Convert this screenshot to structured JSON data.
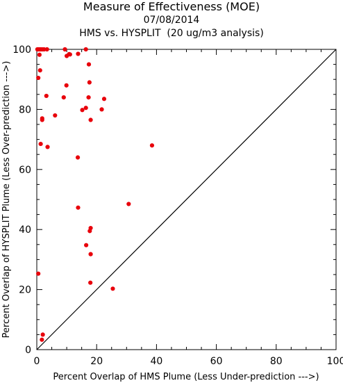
{
  "chart_data": {
    "type": "scatter",
    "title": "Measure of Effectiveness (MOE)",
    "subtitle_date": "07/08/2014",
    "subtitle_analysis": "HMS vs. HYSPLIT  (20 ug/m3 analysis)",
    "xlabel": "Percent Overlap of HMS Plume (Less Under-prediction --->)",
    "ylabel": "Percent Overlap of HYSPLIT Plume (Less Over-prediction --->)",
    "xlim": [
      0,
      100
    ],
    "ylim": [
      0,
      100
    ],
    "xticks": [
      0,
      20,
      40,
      60,
      80,
      100
    ],
    "yticks": [
      0,
      20,
      40,
      60,
      80,
      100
    ],
    "reference_line": "1:1 diagonal",
    "marker_color": "#e8000b",
    "points": [
      [
        0.2,
        100
      ],
      [
        0.5,
        100
      ],
      [
        0.9,
        100
      ],
      [
        1.3,
        100
      ],
      [
        1.8,
        100
      ],
      [
        2.4,
        100
      ],
      [
        3.4,
        100
      ],
      [
        9.4,
        100
      ],
      [
        16.4,
        100
      ],
      [
        10.0,
        97.8
      ],
      [
        0.9,
        98.2
      ],
      [
        10.8,
        98.4
      ],
      [
        11.1,
        98.3
      ],
      [
        13.8,
        98.5
      ],
      [
        17.4,
        95.0
      ],
      [
        1.1,
        93.0
      ],
      [
        0.5,
        90.5
      ],
      [
        17.6,
        89.0
      ],
      [
        9.9,
        88.0
      ],
      [
        3.2,
        84.5
      ],
      [
        9.0,
        84.0
      ],
      [
        22.5,
        83.5
      ],
      [
        17.3,
        84.0
      ],
      [
        16.4,
        80.5
      ],
      [
        15.2,
        79.8
      ],
      [
        21.7,
        80.0
      ],
      [
        6.1,
        78.0
      ],
      [
        1.8,
        77.0
      ],
      [
        1.8,
        76.5
      ],
      [
        18.0,
        76.5
      ],
      [
        1.3,
        68.5
      ],
      [
        3.6,
        67.5
      ],
      [
        38.5,
        68.0
      ],
      [
        13.7,
        64.0
      ],
      [
        30.7,
        48.5
      ],
      [
        13.8,
        47.3
      ],
      [
        18.0,
        40.5
      ],
      [
        17.7,
        39.5
      ],
      [
        16.5,
        34.8
      ],
      [
        18.0,
        31.8
      ],
      [
        0.5,
        25.3
      ],
      [
        17.9,
        22.3
      ],
      [
        25.4,
        20.3
      ],
      [
        2.0,
        5.0
      ],
      [
        1.7,
        3.3
      ]
    ]
  }
}
